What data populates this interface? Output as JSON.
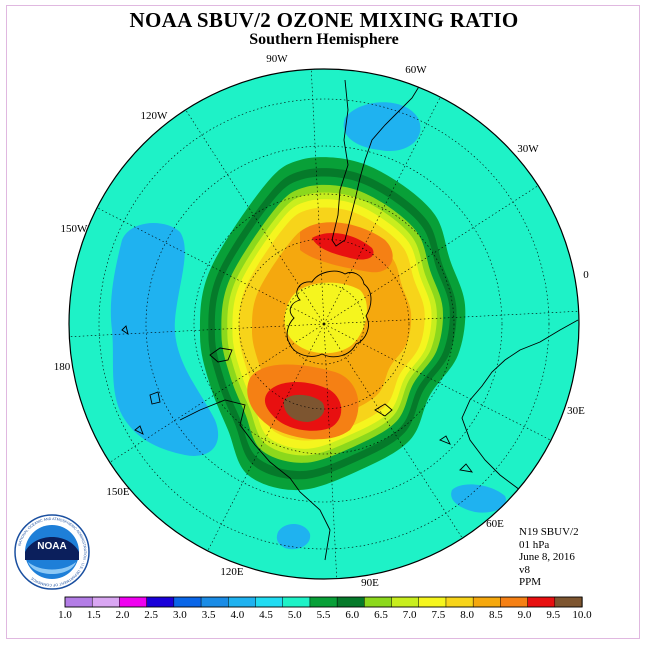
{
  "title": "NOAA SBUV/2 OZONE MIXING RATIO",
  "subtitle": "Southern Hemisphere",
  "longitude_labels": [
    {
      "text": "90W"
    },
    {
      "text": "60W"
    },
    {
      "text": "30W"
    },
    {
      "text": "0"
    },
    {
      "text": "30E"
    },
    {
      "text": "60E"
    },
    {
      "text": "90E"
    },
    {
      "text": "120E"
    },
    {
      "text": "150E"
    },
    {
      "text": "180"
    },
    {
      "text": "150W"
    },
    {
      "text": "120W"
    }
  ],
  "info": {
    "instrument": "N19 SBUV/2",
    "level": "01 hPa",
    "date": "June 8, 2016",
    "version": "v8",
    "units": "PPM"
  },
  "logo": {
    "text": "NOAA",
    "ring_text": "NATIONAL OCEANIC AND ATMOSPHERIC ADMINISTRATION · U.S. DEPARTMENT OF COMMERCE"
  },
  "colorbar": {
    "ticks": [
      "1.0",
      "1.5",
      "2.0",
      "2.5",
      "3.0",
      "3.5",
      "4.0",
      "4.5",
      "5.0",
      "5.5",
      "6.0",
      "6.5",
      "7.0",
      "7.5",
      "8.0",
      "8.5",
      "9.0",
      "9.5",
      "10.0"
    ],
    "colors": [
      "#b37de6",
      "#d9a6f2",
      "#f000f0",
      "#1a00d9",
      "#0a66e8",
      "#1a8ce6",
      "#1fb2f0",
      "#21dcf2",
      "#1ef2c7",
      "#08a038",
      "#057a2a",
      "#8cd81c",
      "#c8ee1e",
      "#f5f51e",
      "#f7d41a",
      "#f5a80e",
      "#f58014",
      "#e81010",
      "#7d5530"
    ]
  },
  "map_colors": {
    "background": "#1ef2c7",
    "zones": [
      "#1ef2c7",
      "#08a038",
      "#057a2a",
      "#8cd81c",
      "#c8ee1e",
      "#f5f51e",
      "#f7d41a",
      "#f5a80e",
      "#f58014",
      "#e81010",
      "#7d5530"
    ]
  }
}
